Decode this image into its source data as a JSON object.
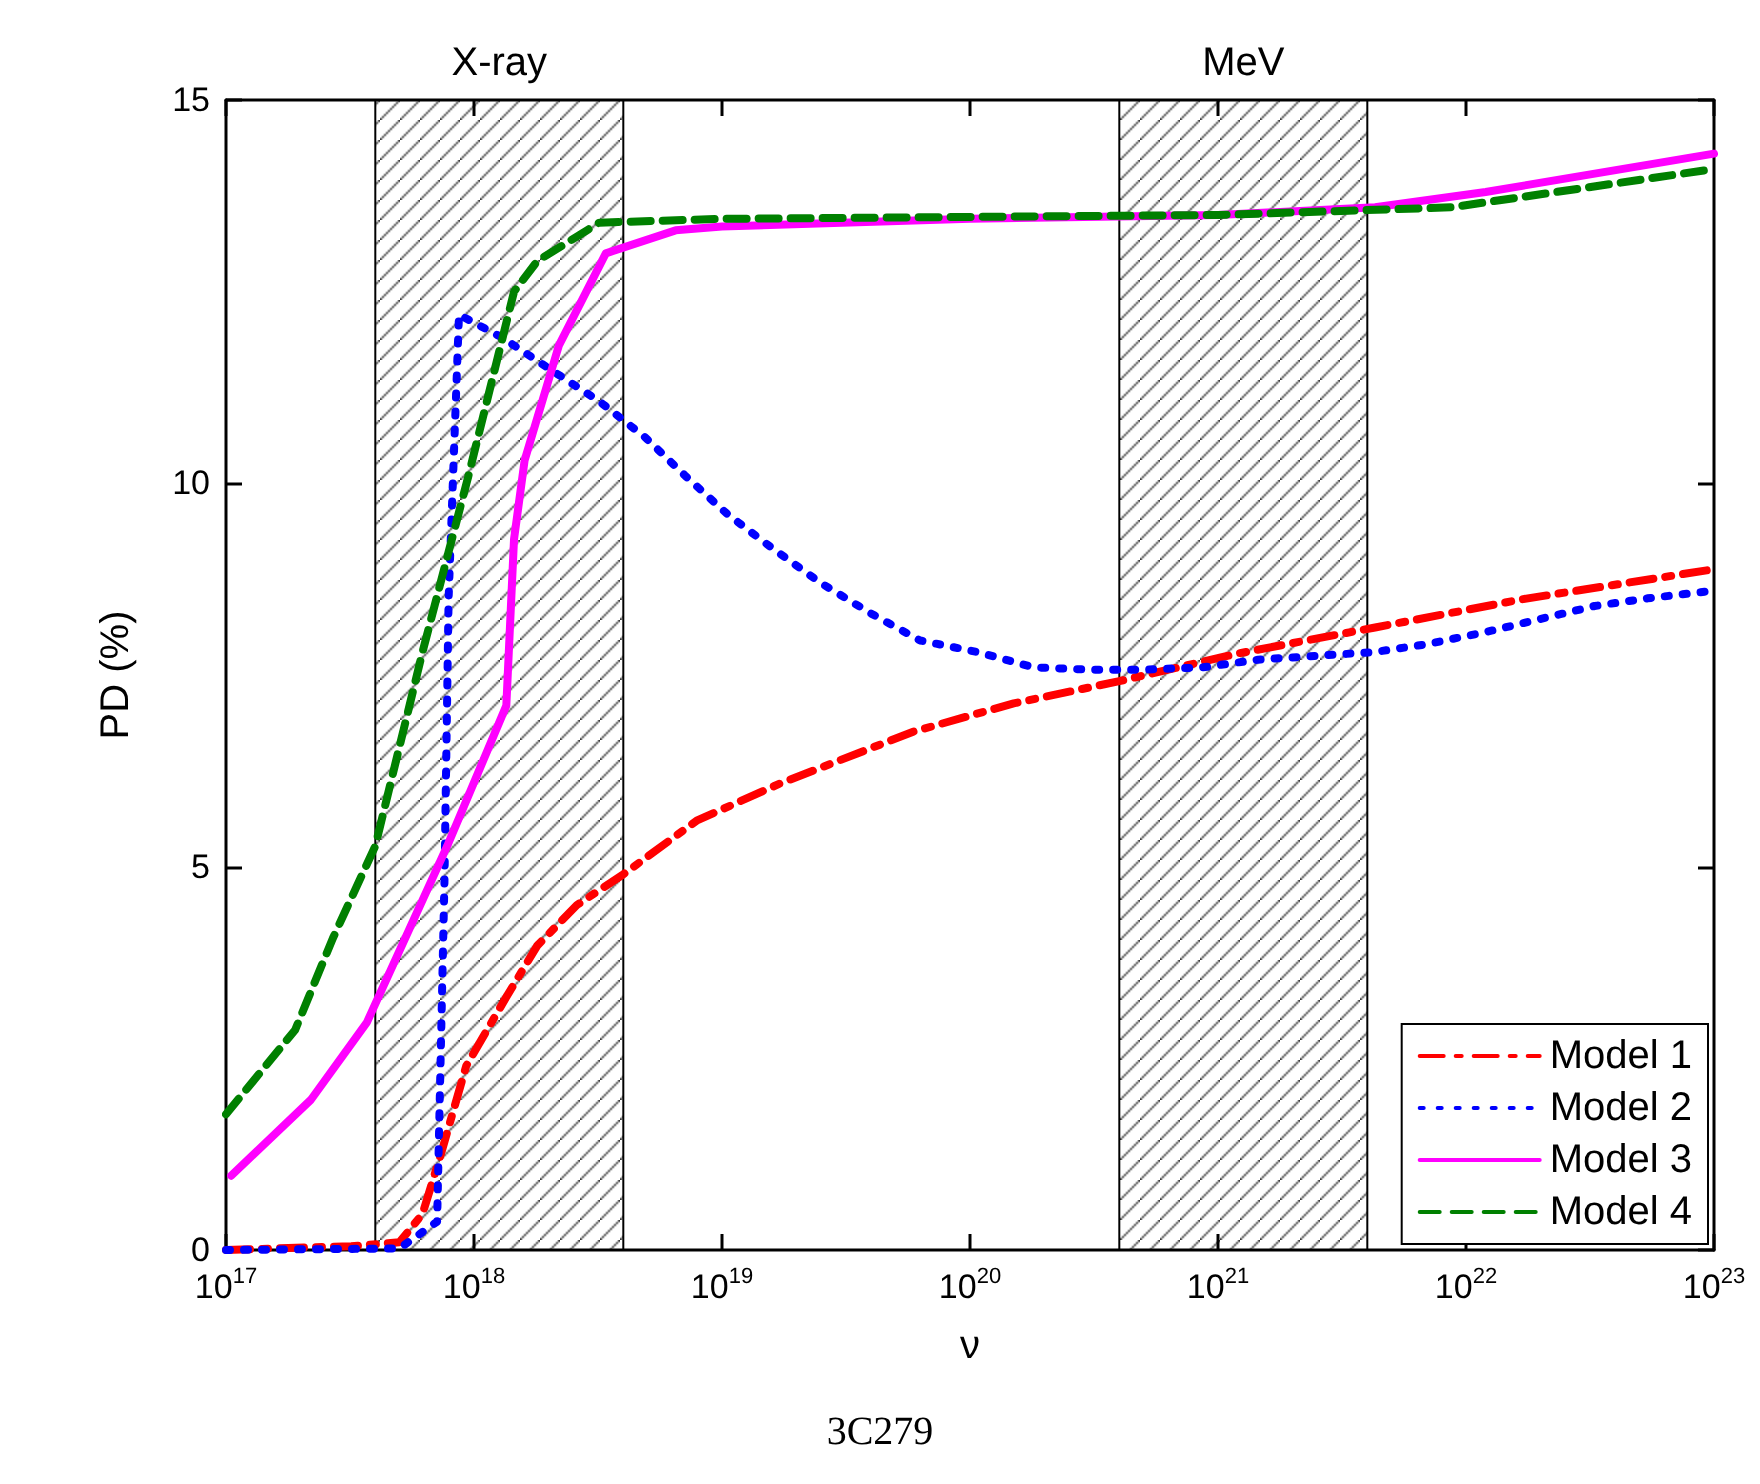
{
  "chart_data": {
    "type": "line",
    "xlabel": "ν",
    "ylabel": "PD (%)",
    "log": "x",
    "xlim": [
      1e+17,
      1e+23
    ],
    "xticks": [
      {
        "value": 1e+17,
        "label": "10$^{17}$"
      },
      {
        "value": 1e+18,
        "label": "10$^{18}$"
      },
      {
        "value": 1e+19,
        "label": "10$^{19}$"
      },
      {
        "value": 1e+20,
        "label": "10$^{20}$"
      },
      {
        "value": 1e+21,
        "label": "10$^{21}$"
      },
      {
        "value": 1e+22,
        "label": "10$^{22}$"
      },
      {
        "value": 1e+23,
        "label": "10$^{23}$"
      }
    ],
    "ylim": [
      0,
      15
    ],
    "yticks": [
      0,
      5,
      10,
      15
    ],
    "grid": false,
    "legend": "bottom right",
    "marker": "none",
    "bands": [
      {
        "axis": "x",
        "from": 4e+17,
        "to": 4e+18,
        "label": "X-ray"
      },
      {
        "axis": "x",
        "from": 4e+20,
        "to": 4e+21,
        "label": "MeV"
      }
    ],
    "annotations": [
      "3C279"
    ],
    "series": [
      {
        "name": "Model 1",
        "color": "#ff0000",
        "line_style": "dashed",
        "x": [
          1e+17,
          3.2e+17,
          5e+17,
          6.2e+17,
          7.4e+17,
          9.3e+17,
          1.35e+18,
          1.8e+18,
          2.6e+18,
          4e+18,
          7.9e+18,
          1.7e+19,
          5.9e+19,
          1.5e+20,
          4e+20,
          1.2e+21,
          4.3e+21,
          1.7e+22,
          1e+23
        ],
        "values": [
          0,
          0.05,
          0.1,
          0.47,
          1.28,
          2.4,
          3.3,
          3.97,
          4.5,
          4.9,
          5.6,
          6.08,
          6.76,
          7.13,
          7.42,
          7.78,
          8.12,
          8.49,
          8.88
        ]
      },
      {
        "name": "Model 2",
        "color": "#0000ff",
        "line_style": "dotted",
        "x": [
          1e+17,
          5e+17,
          7.1e+17,
          7.6e+17,
          7.9e+17,
          8.7e+17,
          1.3e+18,
          2e+18,
          3.2e+18,
          4.9e+18,
          7.1e+18,
          1.05e+19,
          1.6e+19,
          2.5e+19,
          4e+19,
          6.3e+19,
          1.07e+20,
          1.8e+20,
          3e+20,
          5.1e+20,
          8.7e+20,
          1.45e+21,
          2.5e+21,
          4.3e+21,
          6.9e+21,
          1.2e+22,
          3.3e+22,
          5.4e+22,
          1e+23
        ],
        "values": [
          0,
          0.02,
          0.37,
          4.8,
          8.5,
          12.2,
          11.9,
          11.5,
          11.07,
          10.6,
          10.1,
          9.6,
          9.15,
          8.7,
          8.3,
          7.95,
          7.8,
          7.6,
          7.57,
          7.57,
          7.6,
          7.7,
          7.75,
          7.8,
          7.9,
          8.06,
          8.4,
          8.5,
          8.6
        ]
      },
      {
        "name": "Model 3",
        "color": "#ff00ff",
        "line_style": "solid",
        "x": [
          1.05e+17,
          2.2e+17,
          3.7e+17,
          7.8e+17,
          1.35e+18,
          1.45e+18,
          1.6e+18,
          2.2e+18,
          3.4e+18,
          6.5e+18,
          1e+19,
          1e+20,
          1e+21,
          4.3e+21,
          1.2e+22,
          1e+23
        ],
        "values": [
          0.97,
          1.96,
          2.97,
          5.27,
          7.1,
          9.27,
          10.3,
          11.8,
          13.0,
          13.3,
          13.35,
          13.45,
          13.5,
          13.6,
          13.8,
          14.3
        ]
      },
      {
        "name": "Model 4",
        "color": "#008000",
        "line_style": "dashed",
        "x": [
          1e+17,
          1.9e+17,
          2.7e+17,
          4e+17,
          6.2e+17,
          9.5e+17,
          1.45e+18,
          1.8e+18,
          3.2e+18,
          1e+19,
          1e+21,
          8.7e+21,
          1e+23
        ],
        "values": [
          1.77,
          2.87,
          4.07,
          5.27,
          7.8,
          10.1,
          12.5,
          12.9,
          13.4,
          13.45,
          13.5,
          13.6,
          14.1
        ]
      }
    ]
  }
}
